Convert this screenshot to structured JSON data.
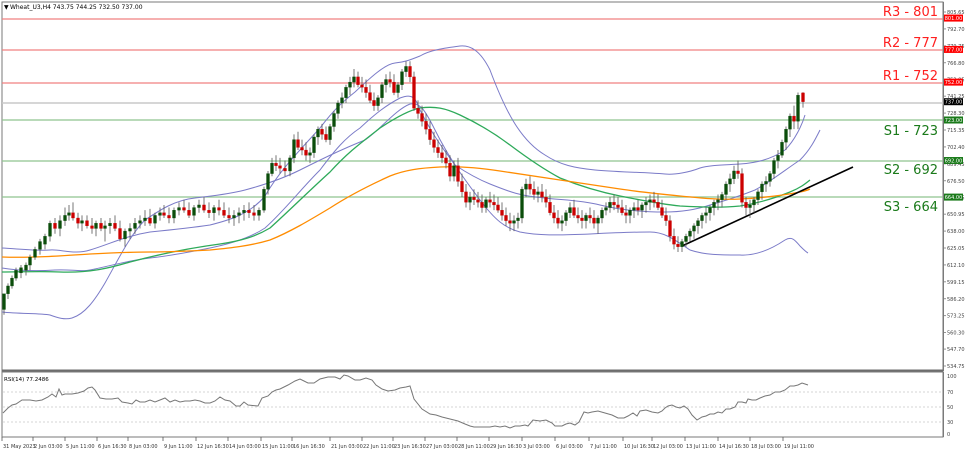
{
  "header": {
    "symbol_line": "Wheat_U3,H4  743.75 744.25 732.50 737.00",
    "symbol": "Wheat_U3,H4",
    "ohlc": {
      "open": "743.75",
      "high": "744.25",
      "low": "732.50",
      "close": "737.00"
    }
  },
  "rsi_label": "RSI(14) 77.2486",
  "colors": {
    "resistance": "#ff0000",
    "resistance_line": "#f08080",
    "support": "#1a7a1a",
    "support_line": "#7fbf7f",
    "bull_candle": "#0b4d0b",
    "bear_candle": "#cc0000",
    "bollinger": "#7b7bc8",
    "ma_fast": "#2eaa5a",
    "ma_slow": "#ff8c00",
    "trendline": "#000000",
    "current_price_bg": "#000000"
  },
  "price_axis": {
    "ticks": [
      "805.65",
      "792.70",
      "779.75",
      "766.80",
      "753.85",
      "741.25",
      "728.30",
      "715.35",
      "702.40",
      "689.45",
      "676.50",
      "663.55",
      "650.95",
      "638.00",
      "625.05",
      "612.10",
      "599.15",
      "586.20",
      "573.25",
      "560.30",
      "547.70",
      "534.75"
    ],
    "badges": [
      {
        "value": "801.00",
        "type": "resistance"
      },
      {
        "value": "777.00",
        "type": "resistance"
      },
      {
        "value": "752.00",
        "type": "resistance"
      },
      {
        "value": "737.00",
        "type": "current"
      },
      {
        "value": "723.00",
        "type": "support"
      },
      {
        "value": "692.00",
        "type": "support"
      },
      {
        "value": "664.00",
        "type": "support"
      }
    ]
  },
  "levels": [
    {
      "label": "R3 - 801",
      "value": 801,
      "type": "resistance"
    },
    {
      "label": "R2 - 777",
      "value": 777,
      "type": "resistance"
    },
    {
      "label": "R1 - 752",
      "value": 752,
      "type": "resistance"
    },
    {
      "label": "S1 - 723",
      "value": 723,
      "type": "support"
    },
    {
      "label": "S2 - 692",
      "value": 692,
      "type": "support"
    },
    {
      "label": "S3 - 664",
      "value": 664,
      "type": "support"
    }
  ],
  "rsi_axis": {
    "ticks": [
      "100",
      "70",
      "50",
      "30",
      "0"
    ]
  },
  "time_axis": {
    "ticks": [
      "31 May 2023",
      "2 Jun 03:00",
      "5 Jun 11:00",
      "6 Jun 16:30",
      "8 Jun 03:00",
      "9 Jun 11:00",
      "12 Jun 16:30",
      "14 Jun 03:00",
      "15 Jun 11:00",
      "16 Jun 16:30",
      "21 Jun 03:00",
      "22 Jun 11:00",
      "23 Jun 16:30",
      "27 Jun 03:00",
      "28 Jun 11:00",
      "29 Jun 16:30",
      "3 Jul 03:00",
      "6 Jul 03:00",
      "7 Jul 11:00",
      "10 Jul 16:30",
      "12 Jul 03:00",
      "13 Jul 11:00",
      "14 Jul 16:30",
      "18 Jul 03:00",
      "19 Jul 11:00"
    ]
  },
  "chart_data": {
    "type": "candlestick",
    "title": "Wheat_U3,H4",
    "ylim": [
      534.75,
      805.65
    ],
    "support_resistance": {
      "R3": 801,
      "R2": 777,
      "R1": 752,
      "S1": 723,
      "S2": 692,
      "S3": 664
    },
    "current_price": 737.0,
    "approx_close_path": [
      {
        "t": "31 May 2023",
        "close": 575
      },
      {
        "t": "2 Jun 03:00",
        "close": 610
      },
      {
        "t": "5 Jun 11:00",
        "close": 645
      },
      {
        "t": "6 Jun 16:30",
        "close": 638
      },
      {
        "t": "8 Jun 03:00",
        "close": 636
      },
      {
        "t": "9 Jun 11:00",
        "close": 640
      },
      {
        "t": "12 Jun 16:30",
        "close": 642
      },
      {
        "t": "14 Jun 03:00",
        "close": 648
      },
      {
        "t": "15 Jun 11:00",
        "close": 665
      },
      {
        "t": "16 Jun 16:30",
        "close": 698
      },
      {
        "t": "21 Jun 03:00",
        "close": 735
      },
      {
        "t": "22 Jun 11:00",
        "close": 752
      },
      {
        "t": "23 Jun 16:30",
        "close": 745
      },
      {
        "t": "27 Jun 03:00",
        "close": 765
      },
      {
        "t": "28 Jun 11:00",
        "close": 700
      },
      {
        "t": "29 Jun 16:30",
        "close": 668
      },
      {
        "t": "3 Jul 03:00",
        "close": 640
      },
      {
        "t": "6 Jul 03:00",
        "close": 662
      },
      {
        "t": "7 Jul 11:00",
        "close": 645
      },
      {
        "t": "10 Jul 16:30",
        "close": 650
      },
      {
        "t": "12 Jul 03:00",
        "close": 625
      },
      {
        "t": "13 Jul 11:00",
        "close": 645
      },
      {
        "t": "14 Jul 16:30",
        "close": 685
      },
      {
        "t": "18 Jul 03:00",
        "close": 660
      },
      {
        "t": "19 Jul 11:00",
        "close": 737
      }
    ],
    "indicators": [
      "Bollinger Bands",
      "Moving Average (fast, green)",
      "Moving Average (slow, orange)",
      "Ascending trendline",
      "RSI(14)"
    ],
    "rsi": {
      "label": "RSI(14)",
      "last_value": 77.2486,
      "levels": [
        70,
        50,
        30
      ],
      "ylim": [
        0,
        100
      ]
    }
  }
}
